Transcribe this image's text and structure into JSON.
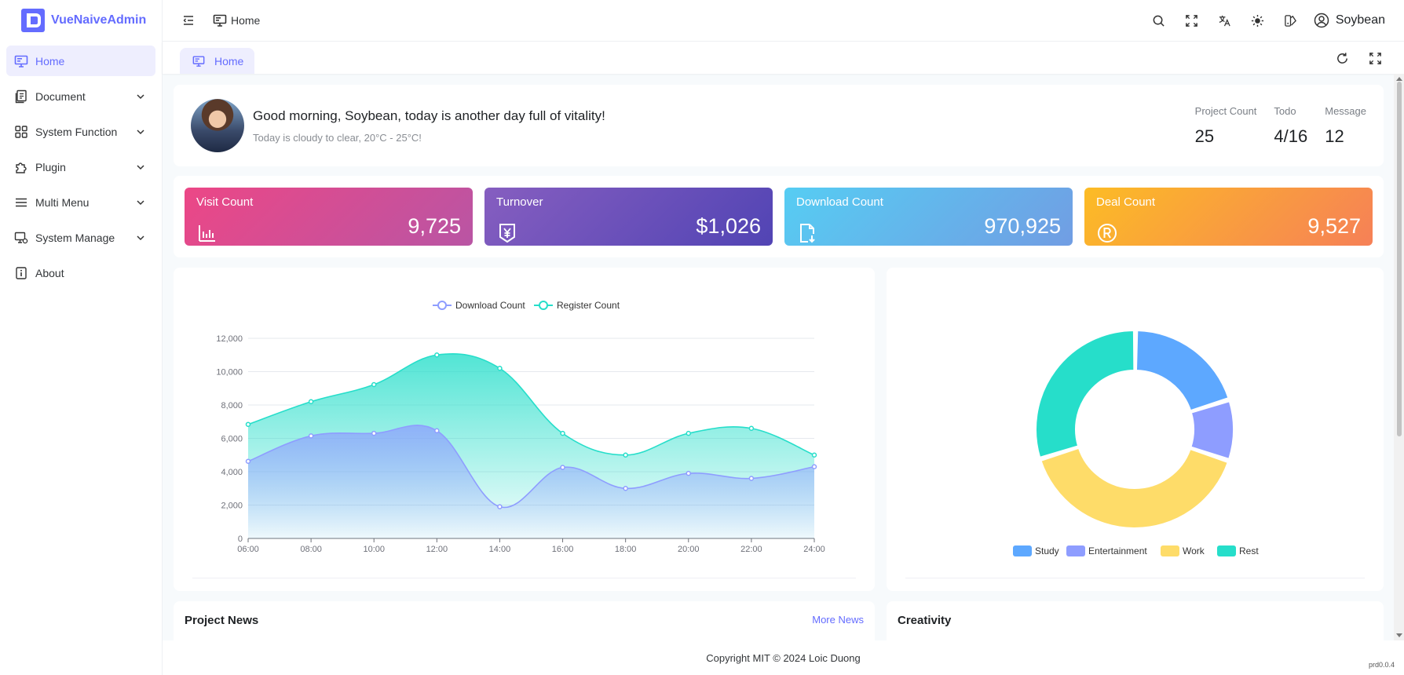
{
  "app": {
    "name": "VueNaiveAdmin"
  },
  "sidebar": {
    "items": [
      {
        "label": "Home",
        "icon": "monitor-icon",
        "active": true
      },
      {
        "label": "Document",
        "icon": "document-icon"
      },
      {
        "label": "System Function",
        "icon": "grid-icon"
      },
      {
        "label": "Plugin",
        "icon": "plugin-icon"
      },
      {
        "label": "Multi Menu",
        "icon": "menu-icon"
      },
      {
        "label": "System Manage",
        "icon": "settings-monitor-icon"
      },
      {
        "label": "About",
        "icon": "info-icon"
      }
    ]
  },
  "header": {
    "breadcrumb": "Home",
    "user": "Soybean"
  },
  "tabs": [
    {
      "label": "Home"
    }
  ],
  "welcome": {
    "title": "Good morning, Soybean, today is another day full of vitality!",
    "subtitle": "Today is cloudy to clear, 20°C - 25°C!",
    "stats": [
      {
        "label": "Project Count",
        "value": "25"
      },
      {
        "label": "Todo",
        "value": "4/16"
      },
      {
        "label": "Message",
        "value": "12"
      }
    ]
  },
  "kpis": [
    {
      "title": "Visit Count",
      "value": "9,725",
      "icon": "bar-chart-icon",
      "gradient_from": "#ec4786",
      "gradient_to": "#b955a4"
    },
    {
      "title": "Turnover",
      "value": "$1,026",
      "icon": "yen-icon",
      "gradient_from": "#865ec0",
      "gradient_to": "#5144b4"
    },
    {
      "title": "Download Count",
      "value": "970,925",
      "icon": "download-file-icon",
      "gradient_from": "#56cdf3",
      "gradient_to": "#719de3"
    },
    {
      "title": "Deal Count",
      "value": "9,527",
      "icon": "registered-icon",
      "gradient_from": "#fcbc25",
      "gradient_to": "#f68057"
    }
  ],
  "chart_data": [
    {
      "type": "area",
      "x": [
        "06:00",
        "08:00",
        "10:00",
        "12:00",
        "14:00",
        "16:00",
        "18:00",
        "20:00",
        "22:00",
        "24:00"
      ],
      "series": [
        {
          "name": "Download Count",
          "values": [
            4623,
            6145,
            6302,
            6458,
            1900,
            4258,
            3000,
            3900,
            3600,
            4300
          ],
          "color": "#8e9dff"
        },
        {
          "name": "Register Count",
          "values": [
            6836,
            8200,
            9224,
            11000,
            10200,
            6300,
            5000,
            6300,
            6600,
            5000
          ],
          "color": "#26deca"
        }
      ],
      "ylim": [
        0,
        12000
      ],
      "yticks": [
        "0",
        "2,000",
        "4,000",
        "6,000",
        "8,000",
        "10,000",
        "12,000"
      ],
      "legend": "top-center",
      "grid": true
    },
    {
      "type": "pie",
      "categories": [
        "Study",
        "Entertainment",
        "Work",
        "Rest"
      ],
      "values": [
        20,
        10,
        40,
        30
      ],
      "colors": [
        "#5da8ff",
        "#8e9dff",
        "#fedc69",
        "#26deca"
      ],
      "legend": "bottom-center"
    }
  ],
  "news": {
    "title": "Project News",
    "more": "More News"
  },
  "creativity": {
    "title": "Creativity"
  },
  "footer": {
    "copyright": "Copyright MIT © 2024 Loic Duong",
    "version": "prd0.0.4"
  }
}
